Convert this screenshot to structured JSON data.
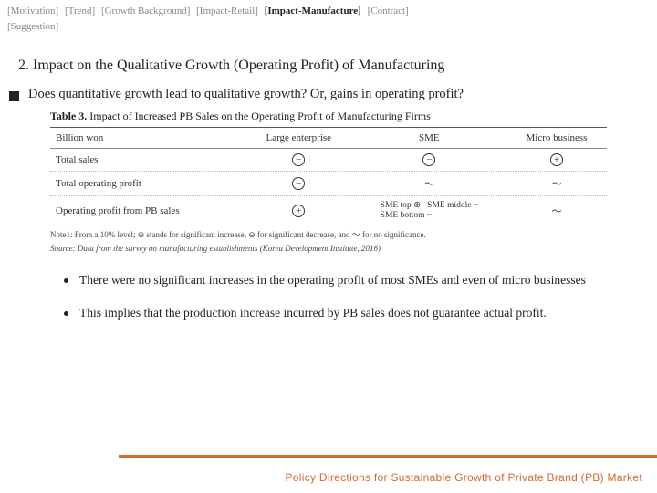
{
  "nav": {
    "items": [
      {
        "label": "[Motivation]",
        "active": false
      },
      {
        "label": "[Trend]",
        "active": false
      },
      {
        "label": "[Growth Background]",
        "active": false
      },
      {
        "label": "[Impact-Retail]",
        "active": false
      },
      {
        "label": "[Impact-Manufacture]",
        "active": true
      },
      {
        "label": "[Contract]",
        "active": false
      },
      {
        "label": "[Suggestion]",
        "active": false
      }
    ]
  },
  "heading": "2. Impact on the Qualitative Growth (Operating Profit) of Manufacturing",
  "question": "Does quantitative growth lead to qualitative growth? Or, gains in operating profit?",
  "table": {
    "title_prefix": "Table 3.",
    "title_rest": " Impact of Increased PB Sales on the Operating Profit of Manufacturing Firms",
    "columns": [
      "Billion won",
      "Large enterprise",
      "SME",
      "Micro business"
    ],
    "rows": [
      {
        "label": "Total sales",
        "cells": [
          "minus",
          "minus",
          "plus"
        ]
      },
      {
        "label": "Total operating profit",
        "cells": [
          "minus",
          "tilde",
          "tilde"
        ]
      },
      {
        "label": "Operating profit from PB sales",
        "cells": [
          "plus",
          "sme_split",
          "tilde"
        ]
      }
    ],
    "sme_split": {
      "top": "SME top ⊕",
      "mid": "SME middle ~",
      "bot": "SME bottom ~"
    },
    "note1": "Note1: From a 10% level; ⊕ stands for significant increase, ⊖ for significant decrease, and ～ for no significance.",
    "note2": "Source: Data from the survey on manufacturing establishments (Korea Development Institute, 2016)"
  },
  "bullets": [
    "There were no significant increases in the operating profit of most SMEs and even of micro businesses",
    "This implies that the production increase incurred by PB sales does not guarantee actual profit."
  ],
  "footer": "Policy Directions for Sustainable Growth of Private Brand (PB) Market",
  "colors": {
    "accent": "#d56a2a"
  }
}
